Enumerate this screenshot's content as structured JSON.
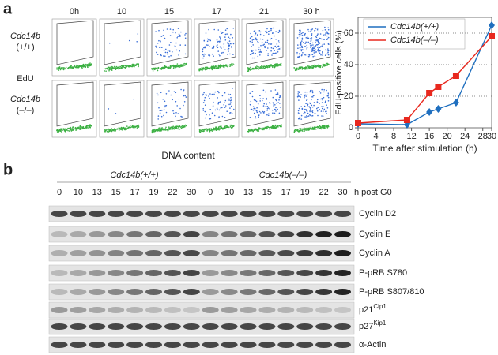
{
  "panel_labels": [
    "a",
    "b"
  ],
  "flow": {
    "timepoints": [
      "0h",
      "10",
      "15",
      "17",
      "21",
      "30 h"
    ],
    "rows": [
      {
        "gene": "Cdc14b",
        "genotype": "(+/+)"
      },
      {
        "gene": "Cdc14b",
        "genotype": "(–/–)"
      }
    ],
    "y_label": "EdU",
    "x_label": "DNA content"
  },
  "chart_data": {
    "type": "line",
    "x_label": "Time after stimulation (h)",
    "y_label": "EdU-positive cells (%)",
    "xlim": [
      0,
      30
    ],
    "xticks": [
      0,
      4,
      8,
      12,
      16,
      20,
      24,
      28,
      30
    ],
    "ylim": [
      0,
      70
    ],
    "yticks": [
      0,
      20,
      40,
      60
    ],
    "grid": true,
    "legend": "upper left",
    "series": [
      {
        "name": "Cdc14b(+/+)",
        "color": "#1f6fbf",
        "marker": "diamond",
        "x": [
          0,
          11,
          16,
          18,
          22,
          30
        ],
        "values": [
          2.5,
          2,
          10,
          12,
          16,
          65
        ]
      },
      {
        "name": "Cdc14b(–/–)",
        "color": "#e8281e",
        "marker": "square",
        "x": [
          0,
          11,
          16,
          18,
          22,
          30
        ],
        "values": [
          3,
          5,
          22,
          26,
          33,
          58
        ]
      }
    ]
  },
  "blot": {
    "groups": [
      "Cdc14b(+/+)",
      "Cdc14b(–/–)"
    ],
    "lanes": [
      "0",
      "10",
      "13",
      "15",
      "17",
      "19",
      "22",
      "30",
      "0",
      "10",
      "13",
      "15",
      "17",
      "19",
      "22",
      "30"
    ],
    "unit": "h post G0",
    "proteins": [
      {
        "name": "Cyclin D2"
      },
      {
        "name": "Cyclin E"
      },
      {
        "name": "Cyclin A"
      },
      {
        "name": "P-pRB S780"
      },
      {
        "name": "P-pRB S807/810"
      },
      {
        "name": "p21",
        "sup": "Cip1"
      },
      {
        "name": "p27",
        "sup": "Kip1"
      },
      {
        "name": "α-Actin"
      }
    ]
  }
}
